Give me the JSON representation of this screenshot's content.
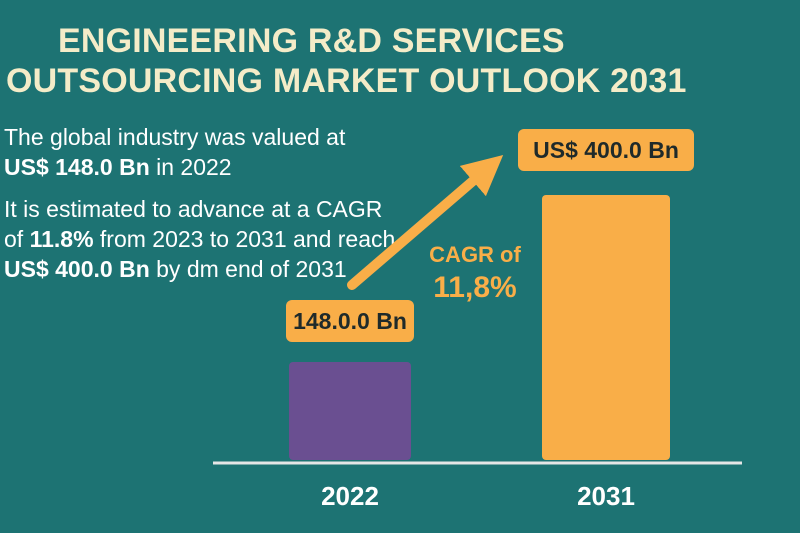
{
  "title": {
    "line1": "ENGINEERING R&D SERVICES",
    "line2": "OUTSOURCING MARKET OUTLOOK 2031"
  },
  "info": {
    "p1_a": "The global industry was valued at",
    "p1_value": "US$ 148.0 Bn",
    "p1_b": " in 2022",
    "p2_a": "It is estimated to advance at a CAGR of ",
    "p2_cagr": "11.8%",
    "p2_b": " from 2023 to 2031 and reach ",
    "p2_value": "US$ 400.0 Bn",
    "p2_c": " by dm end of 2031"
  },
  "colors": {
    "background": "#1d7373",
    "bar_2022": "#6a4f91",
    "bar_2031": "#f9ae48",
    "label_box": "#f9ae48",
    "arrow": "#f9ae48",
    "title": "#f4ecc8"
  },
  "chart_data": {
    "type": "bar",
    "categories": [
      "2022",
      "2031"
    ],
    "values": [
      148.0,
      400.0
    ],
    "value_labels": [
      "148.0.0 Bn",
      "US$ 400.0 Bn"
    ],
    "annotation": {
      "line1": "CAGR of",
      "line2": "11,8%"
    },
    "ylim": [
      0,
      400
    ]
  }
}
